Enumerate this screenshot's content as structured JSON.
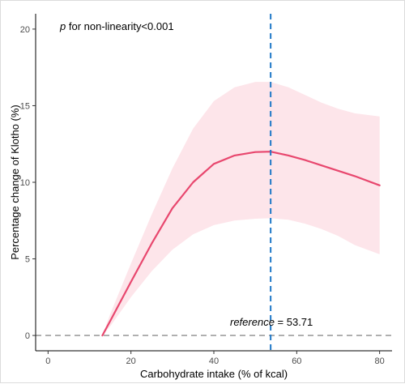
{
  "chart_data": {
    "type": "line",
    "xlabel": "Carbohydrate intake (% of kcal)",
    "ylabel": "Percentage change of Klotho (%)",
    "xlim": [
      -3,
      83
    ],
    "ylim": [
      -1,
      21
    ],
    "x_ticks": [
      0,
      20,
      40,
      60,
      80
    ],
    "y_ticks": [
      0,
      5,
      10,
      15,
      20
    ],
    "grid": false,
    "series": [
      {
        "type": "line",
        "color": "#e8476e",
        "x": [
          13.1,
          15,
          20,
          25,
          30,
          35,
          40,
          45,
          50,
          53.71,
          58,
          62,
          66,
          70,
          74,
          80
        ],
        "y": [
          0,
          0.95,
          3.5,
          6.0,
          8.3,
          10.0,
          11.2,
          11.75,
          11.97,
          12.0,
          11.75,
          11.45,
          11.1,
          10.75,
          10.4,
          9.8
        ]
      }
    ],
    "ci_band": {
      "color": "#fde5ea",
      "x": [
        13.1,
        15,
        20,
        25,
        30,
        35,
        40,
        45,
        50,
        53.71,
        58,
        62,
        66,
        70,
        74,
        80
      ],
      "lower": [
        0,
        0.6,
        2.5,
        4.2,
        5.6,
        6.6,
        7.2,
        7.5,
        7.62,
        7.65,
        7.55,
        7.3,
        6.95,
        6.5,
        5.9,
        5.3
      ],
      "upper": [
        0,
        1.4,
        4.7,
        7.9,
        10.9,
        13.5,
        15.3,
        16.2,
        16.55,
        16.55,
        16.2,
        15.7,
        15.2,
        14.8,
        14.5,
        14.3
      ]
    },
    "reference_line": {
      "x": 53.71,
      "color": "#1f78c8"
    },
    "zero_line": {
      "y": 0,
      "color": "#9e9e9e"
    },
    "annotations": {
      "nonlinearity_p": "p",
      "nonlinearity_rest": " for non-linearity<0.001",
      "reference_word": "reference",
      "reference_rest": " = 53.71"
    }
  }
}
